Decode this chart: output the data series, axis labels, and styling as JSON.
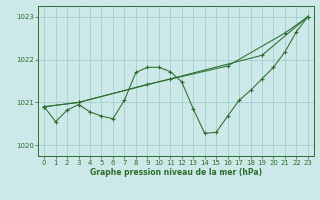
{
  "xlabel": "Graphe pression niveau de la mer (hPa)",
  "bg_color": "#cce8e8",
  "grid_color": "#99cccc",
  "line_color": "#2d6e2d",
  "ylim": [
    1019.75,
    1023.25
  ],
  "xlim": [
    -0.5,
    23.5
  ],
  "yticks": [
    1020,
    1021,
    1022,
    1023
  ],
  "xticks": [
    0,
    1,
    2,
    3,
    4,
    5,
    6,
    7,
    8,
    9,
    10,
    11,
    12,
    13,
    14,
    15,
    16,
    17,
    18,
    19,
    20,
    21,
    22,
    23
  ],
  "s_wavy": [
    1020.9,
    1020.55,
    1020.82,
    1020.95,
    1020.78,
    1020.68,
    1020.62,
    1021.05,
    1021.7,
    1021.82,
    1021.82,
    1021.72,
    1021.48,
    1020.85,
    1020.28,
    1020.3,
    1020.68,
    1021.05,
    1021.28,
    1021.55,
    1021.82,
    1022.18,
    1022.65,
    1023.0
  ],
  "s_diag1_x": [
    0,
    3,
    11,
    19,
    23
  ],
  "s_diag1_y": [
    1020.9,
    1021.0,
    1021.55,
    1022.1,
    1023.0
  ],
  "s_diag2_x": [
    0,
    3,
    9,
    16,
    21,
    23
  ],
  "s_diag2_y": [
    1020.9,
    1021.0,
    1021.42,
    1021.85,
    1022.62,
    1023.0
  ]
}
